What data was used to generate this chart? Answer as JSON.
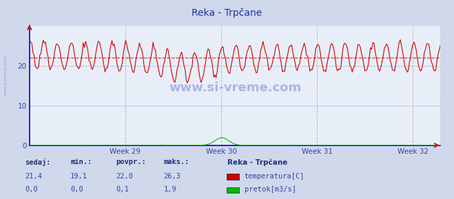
{
  "title": "Reka - Trpčane",
  "bg_color": "#d0d8ec",
  "plot_bg_color": "#e8eef8",
  "grid_color": "#c0c8dc",
  "grid_vcolor": "#d0a0a0",
  "ylim": [
    0,
    30
  ],
  "yticks": [
    0,
    10,
    20
  ],
  "xlim_weeks": [
    28,
    33
  ],
  "week_ticks": [
    29,
    30,
    31,
    32
  ],
  "temp_color": "#cc0000",
  "flow_color": "#00bb00",
  "avg_line_color": "#cc0000",
  "avg_value": 22.0,
  "temp_min": 19.1,
  "temp_max": 26.3,
  "temp_sedaj": 21.4,
  "temp_povpr": 22.0,
  "flow_sedaj": 0.0,
  "flow_min": 0.0,
  "flow_povpr": 0.1,
  "flow_max": 1.9,
  "watermark": "www.si-vreme.com",
  "legend_title": "Reka - Trpčane",
  "legend_items": [
    "temperatura[C]",
    "pretok[m3/s]"
  ],
  "legend_colors": [
    "#cc0000",
    "#00bb00"
  ],
  "stats_headers": [
    "sedaj:",
    "min.:",
    "povpr.:",
    "maks.:"
  ],
  "stats_temp": [
    "21,4",
    "19,1",
    "22,0",
    "26,3"
  ],
  "stats_flow": [
    "0,0",
    "0,0",
    "0,1",
    "1,9"
  ],
  "axis_color": "#0000cc",
  "tick_color": "#334499",
  "title_color": "#223399"
}
